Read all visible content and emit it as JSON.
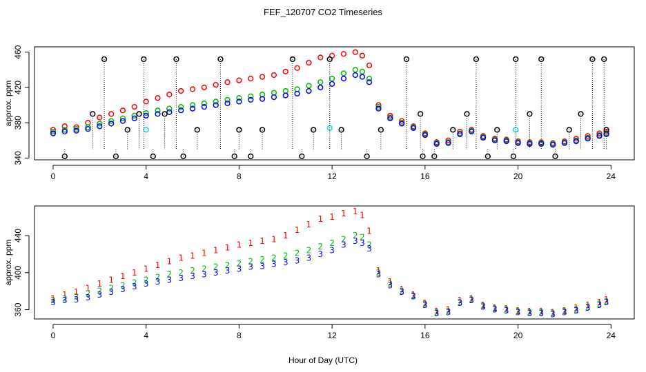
{
  "chart_data": [
    {
      "type": "scatter",
      "title": "FEF_120707  CO2 Timeseries",
      "xlabel": "",
      "ylabel": "approx. ppm",
      "xlim": [
        -0.8,
        25
      ],
      "ylim": [
        338,
        466
      ],
      "xticks": [
        0,
        4,
        8,
        12,
        16,
        20,
        24
      ],
      "yticks": [
        340,
        380,
        420,
        460
      ],
      "marker": "circle",
      "series": [
        {
          "name": "series 1",
          "color": "#ff0000",
          "x": [
            0.0,
            0.5,
            1.0,
            1.5,
            2.0,
            2.5,
            3.0,
            3.5,
            4.0,
            4.5,
            5.0,
            5.5,
            6.0,
            6.5,
            7.0,
            7.5,
            8.0,
            8.5,
            9.0,
            9.5,
            10.0,
            10.5,
            11.0,
            11.5,
            12.0,
            12.5,
            13.0,
            13.3,
            13.6,
            14.0,
            14.5,
            15.0,
            15.5,
            16.0,
            16.5,
            17.0,
            17.5,
            18.0,
            18.5,
            19.0,
            19.5,
            20.0,
            20.5,
            21.0,
            21.5,
            22.0,
            22.5,
            23.0,
            23.5,
            23.8
          ],
          "y": [
            372,
            376,
            375,
            380,
            386,
            390,
            394,
            398,
            404,
            408,
            412,
            416,
            418,
            420,
            423,
            426,
            428,
            430,
            432,
            434,
            438,
            442,
            448,
            454,
            456,
            458,
            460,
            456,
            445,
            400,
            388,
            382,
            376,
            368,
            358,
            360,
            370,
            372,
            365,
            362,
            361,
            359,
            358,
            358,
            357,
            359,
            362,
            365,
            368,
            370
          ]
        },
        {
          "name": "series 2",
          "color": "#00bb00",
          "x": [
            0.0,
            0.5,
            1.0,
            1.5,
            2.0,
            2.5,
            3.0,
            3.5,
            4.0,
            4.5,
            5.0,
            5.5,
            6.0,
            6.5,
            7.0,
            7.5,
            8.0,
            8.5,
            9.0,
            9.5,
            10.0,
            10.5,
            11.0,
            11.5,
            12.0,
            12.5,
            13.0,
            13.3,
            13.6,
            14.0,
            14.5,
            15.0,
            15.5,
            16.0,
            16.5,
            17.0,
            17.5,
            18.0,
            18.5,
            19.0,
            19.5,
            20.0,
            20.5,
            21.0,
            21.5,
            22.0,
            22.5,
            23.0,
            23.5,
            23.8
          ],
          "y": [
            370,
            372,
            373,
            375,
            379,
            382,
            385,
            388,
            391,
            394,
            396,
            398,
            400,
            402,
            404,
            406,
            408,
            410,
            412,
            414,
            416,
            418,
            422,
            426,
            430,
            436,
            440,
            438,
            430,
            398,
            386,
            380,
            375,
            367,
            357,
            358,
            368,
            371,
            364,
            361,
            360,
            358,
            357,
            357,
            356,
            358,
            360,
            363,
            366,
            368
          ]
        },
        {
          "name": "series 3",
          "color": "#0000ff",
          "x": [
            0.0,
            0.5,
            1.0,
            1.5,
            2.0,
            2.5,
            3.0,
            3.5,
            4.0,
            4.5,
            5.0,
            5.5,
            6.0,
            6.5,
            7.0,
            7.5,
            8.0,
            8.5,
            9.0,
            9.5,
            10.0,
            10.5,
            11.0,
            11.5,
            12.0,
            12.5,
            13.0,
            13.3,
            13.6,
            14.0,
            14.5,
            15.0,
            15.5,
            16.0,
            16.5,
            17.0,
            17.5,
            18.0,
            18.5,
            19.0,
            19.5,
            20.0,
            20.5,
            21.0,
            21.5,
            22.0,
            22.5,
            23.0,
            23.5,
            23.8
          ],
          "y": [
            368,
            370,
            371,
            373,
            376,
            379,
            382,
            385,
            388,
            390,
            392,
            394,
            396,
            398,
            400,
            402,
            404,
            406,
            407,
            409,
            411,
            413,
            416,
            420,
            424,
            430,
            434,
            432,
            426,
            396,
            385,
            379,
            374,
            366,
            356,
            357,
            367,
            370,
            363,
            360,
            359,
            357,
            356,
            356,
            355,
            357,
            359,
            362,
            365,
            367
          ]
        },
        {
          "name": "series 4",
          "color": "#00dddd",
          "x": [
            4.0,
            11.9,
            19.9
          ],
          "y": [
            372,
            374,
            372
          ]
        },
        {
          "name": "series 5",
          "color": "#000000",
          "x": [
            0.5,
            1.7,
            2.2,
            2.7,
            3.2,
            3.7,
            3.9,
            4.3,
            4.8,
            5.3,
            5.6,
            6.2,
            7.2,
            7.8,
            8.0,
            8.5,
            9.0,
            10.3,
            10.7,
            11.2,
            11.9,
            12.4,
            13.5,
            14.1,
            15.2,
            15.8,
            15.9,
            16.4,
            17.2,
            17.8,
            18.2,
            18.7,
            19.1,
            19.8,
            19.9,
            20.5,
            21.0,
            21.6,
            22.2,
            22.7,
            23.2,
            23.7,
            23.8
          ],
          "y": [
            342,
            390,
            452,
            342,
            372,
            390,
            452,
            342,
            390,
            452,
            342,
            372,
            452,
            342,
            372,
            342,
            372,
            452,
            342,
            372,
            452,
            372,
            342,
            372,
            452,
            390,
            342,
            342,
            372,
            390,
            452,
            342,
            372,
            342,
            452,
            390,
            452,
            342,
            372,
            390,
            452,
            452,
            372
          ]
        }
      ]
    },
    {
      "type": "scatter",
      "title": "",
      "xlabel": "Hour of Day (UTC)",
      "ylabel": "approx. ppm",
      "xlim": [
        -0.8,
        25
      ],
      "ylim": [
        350,
        472
      ],
      "xticks": [
        0,
        4,
        8,
        12,
        16,
        20,
        24
      ],
      "yticks": [
        360,
        400,
        440
      ],
      "marker": "digit",
      "series": [
        {
          "name": "1",
          "color": "#ff0000",
          "x": [
            0.0,
            0.5,
            1.0,
            1.5,
            2.0,
            2.5,
            3.0,
            3.5,
            4.0,
            4.5,
            5.0,
            5.5,
            6.0,
            6.5,
            7.0,
            7.5,
            8.0,
            8.5,
            9.0,
            9.5,
            10.0,
            10.5,
            11.0,
            11.5,
            12.0,
            12.5,
            13.0,
            13.3,
            13.6,
            14.0,
            14.5,
            15.0,
            15.5,
            16.0,
            16.5,
            17.0,
            17.5,
            18.0,
            18.5,
            19.0,
            19.5,
            20.0,
            20.5,
            21.0,
            21.5,
            22.0,
            22.5,
            23.0,
            23.5,
            23.8
          ],
          "y": [
            372,
            376,
            379,
            383,
            388,
            392,
            396,
            400,
            404,
            408,
            412,
            416,
            418,
            421,
            424,
            427,
            430,
            432,
            434,
            436,
            440,
            446,
            452,
            458,
            460,
            464,
            466,
            462,
            445,
            402,
            390,
            382,
            376,
            367,
            358,
            360,
            370,
            372,
            365,
            362,
            361,
            359,
            358,
            358,
            357,
            359,
            362,
            365,
            368,
            371
          ]
        },
        {
          "name": "2",
          "color": "#00bb00",
          "x": [
            0.0,
            0.5,
            1.0,
            1.5,
            2.0,
            2.5,
            3.0,
            3.5,
            4.0,
            4.5,
            5.0,
            5.5,
            6.0,
            6.5,
            7.0,
            7.5,
            8.0,
            8.5,
            9.0,
            9.5,
            10.0,
            10.5,
            11.0,
            11.5,
            12.0,
            12.5,
            13.0,
            13.3,
            13.6,
            14.0,
            14.5,
            15.0,
            15.5,
            16.0,
            16.5,
            17.0,
            17.5,
            18.0,
            18.5,
            19.0,
            19.5,
            20.0,
            20.5,
            21.0,
            21.5,
            22.0,
            22.5,
            23.0,
            23.5,
            23.8
          ],
          "y": [
            370,
            372,
            374,
            377,
            380,
            383,
            386,
            389,
            392,
            395,
            398,
            400,
            402,
            404,
            406,
            408,
            410,
            412,
            414,
            416,
            418,
            421,
            424,
            428,
            432,
            436,
            440,
            438,
            430,
            400,
            388,
            380,
            375,
            366,
            357,
            358,
            368,
            371,
            364,
            361,
            360,
            358,
            357,
            357,
            356,
            358,
            360,
            363,
            366,
            369
          ]
        },
        {
          "name": "3",
          "color": "#0000ff",
          "x": [
            0.0,
            0.5,
            1.0,
            1.5,
            2.0,
            2.5,
            3.0,
            3.5,
            4.0,
            4.5,
            5.0,
            5.5,
            6.0,
            6.5,
            7.0,
            7.5,
            8.0,
            8.5,
            9.0,
            9.5,
            10.0,
            10.5,
            11.0,
            11.5,
            12.0,
            12.5,
            13.0,
            13.3,
            13.6,
            14.0,
            14.5,
            15.0,
            15.5,
            16.0,
            16.5,
            17.0,
            17.5,
            18.0,
            18.5,
            19.0,
            19.5,
            20.0,
            20.5,
            21.0,
            21.5,
            22.0,
            22.5,
            23.0,
            23.5,
            23.8
          ],
          "y": [
            368,
            370,
            371,
            373,
            376,
            379,
            382,
            385,
            388,
            390,
            392,
            394,
            396,
            398,
            400,
            402,
            404,
            406,
            407,
            409,
            411,
            413,
            416,
            420,
            424,
            430,
            434,
            432,
            426,
            398,
            386,
            379,
            374,
            365,
            356,
            357,
            367,
            370,
            363,
            360,
            359,
            357,
            356,
            356,
            355,
            357,
            359,
            362,
            365,
            368
          ]
        }
      ]
    }
  ]
}
